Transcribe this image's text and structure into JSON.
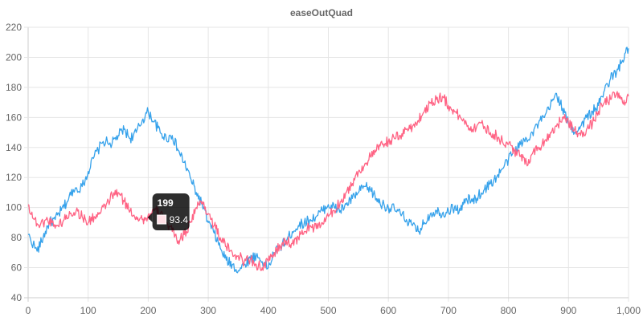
{
  "chart_data": {
    "type": "line",
    "title": "easeOutQuad",
    "xlim": [
      0,
      1000
    ],
    "ylim": [
      40,
      220
    ],
    "x_ticks": [
      "0",
      "100",
      "200",
      "300",
      "400",
      "500",
      "600",
      "700",
      "800",
      "900",
      "1,000"
    ],
    "y_ticks": [
      "40",
      "60",
      "80",
      "100",
      "120",
      "140",
      "160",
      "180",
      "200",
      "220"
    ],
    "grid": true,
    "series": [
      {
        "color": "#36a2eb",
        "points": [
          [
            0,
            82
          ],
          [
            15,
            71
          ],
          [
            25,
            80
          ],
          [
            35,
            90
          ],
          [
            45,
            92
          ],
          [
            55,
            98
          ],
          [
            65,
            104
          ],
          [
            75,
            112
          ],
          [
            90,
            114
          ],
          [
            100,
            124
          ],
          [
            110,
            134
          ],
          [
            125,
            144
          ],
          [
            140,
            143
          ],
          [
            150,
            148
          ],
          [
            160,
            152
          ],
          [
            170,
            146
          ],
          [
            180,
            150
          ],
          [
            190,
            158
          ],
          [
            200,
            164
          ],
          [
            210,
            157
          ],
          [
            220,
            150
          ],
          [
            230,
            146
          ],
          [
            240,
            148
          ],
          [
            250,
            138
          ],
          [
            260,
            130
          ],
          [
            270,
            120
          ],
          [
            280,
            110
          ],
          [
            290,
            102
          ],
          [
            300,
            90
          ],
          [
            310,
            83
          ],
          [
            320,
            73
          ],
          [
            330,
            65
          ],
          [
            340,
            62
          ],
          [
            350,
            58
          ],
          [
            360,
            62
          ],
          [
            370,
            66
          ],
          [
            380,
            68
          ],
          [
            390,
            64
          ],
          [
            400,
            60
          ],
          [
            410,
            70
          ],
          [
            420,
            74
          ],
          [
            430,
            78
          ],
          [
            440,
            84
          ],
          [
            450,
            88
          ],
          [
            460,
            90
          ],
          [
            470,
            92
          ],
          [
            480,
            94
          ],
          [
            490,
            98
          ],
          [
            500,
            102
          ],
          [
            510,
            100
          ],
          [
            520,
            98
          ],
          [
            530,
            102
          ],
          [
            540,
            106
          ],
          [
            550,
            110
          ],
          [
            560,
            114
          ],
          [
            570,
            112
          ],
          [
            580,
            106
          ],
          [
            590,
            102
          ],
          [
            600,
            100
          ],
          [
            610,
            99
          ],
          [
            620,
            96
          ],
          [
            630,
            92
          ],
          [
            640,
            88
          ],
          [
            650,
            84
          ],
          [
            660,
            90
          ],
          [
            670,
            96
          ],
          [
            680,
            98
          ],
          [
            690,
            96
          ],
          [
            700,
            98
          ],
          [
            710,
            100
          ],
          [
            720,
            98
          ],
          [
            730,
            106
          ],
          [
            740,
            104
          ],
          [
            750,
            108
          ],
          [
            760,
            112
          ],
          [
            770,
            116
          ],
          [
            780,
            120
          ],
          [
            790,
            126
          ],
          [
            800,
            132
          ],
          [
            810,
            138
          ],
          [
            820,
            142
          ],
          [
            830,
            146
          ],
          [
            840,
            150
          ],
          [
            850,
            156
          ],
          [
            860,
            160
          ],
          [
            870,
            168
          ],
          [
            880,
            176
          ],
          [
            890,
            166
          ],
          [
            900,
            156
          ],
          [
            910,
            150
          ],
          [
            920,
            154
          ],
          [
            930,
            160
          ],
          [
            940,
            164
          ],
          [
            950,
            168
          ],
          [
            960,
            178
          ],
          [
            970,
            186
          ],
          [
            980,
            190
          ],
          [
            990,
            198
          ],
          [
            1000,
            206
          ]
        ]
      },
      {
        "color": "#ff6384",
        "points": [
          [
            0,
            102
          ],
          [
            10,
            92
          ],
          [
            20,
            88
          ],
          [
            30,
            92
          ],
          [
            40,
            90
          ],
          [
            50,
            88
          ],
          [
            60,
            92
          ],
          [
            70,
            96
          ],
          [
            80,
            98
          ],
          [
            90,
            94
          ],
          [
            100,
            90
          ],
          [
            110,
            94
          ],
          [
            120,
            96
          ],
          [
            130,
            102
          ],
          [
            140,
            108
          ],
          [
            150,
            110
          ],
          [
            160,
            104
          ],
          [
            170,
            98
          ],
          [
            180,
            94
          ],
          [
            190,
            92
          ],
          [
            199,
            93.4
          ],
          [
            210,
            98
          ],
          [
            220,
            96
          ],
          [
            230,
            90
          ],
          [
            240,
            84
          ],
          [
            250,
            78
          ],
          [
            260,
            82
          ],
          [
            270,
            90
          ],
          [
            280,
            100
          ],
          [
            290,
            104
          ],
          [
            300,
            96
          ],
          [
            310,
            88
          ],
          [
            320,
            80
          ],
          [
            330,
            74
          ],
          [
            340,
            70
          ],
          [
            350,
            68
          ],
          [
            360,
            64
          ],
          [
            370,
            66
          ],
          [
            380,
            62
          ],
          [
            390,
            60
          ],
          [
            400,
            64
          ],
          [
            410,
            70
          ],
          [
            420,
            74
          ],
          [
            430,
            78
          ],
          [
            440,
            76
          ],
          [
            450,
            80
          ],
          [
            460,
            84
          ],
          [
            470,
            88
          ],
          [
            480,
            86
          ],
          [
            490,
            90
          ],
          [
            500,
            94
          ],
          [
            510,
            98
          ],
          [
            520,
            104
          ],
          [
            530,
            110
          ],
          [
            540,
            116
          ],
          [
            550,
            124
          ],
          [
            560,
            128
          ],
          [
            570,
            134
          ],
          [
            580,
            138
          ],
          [
            590,
            142
          ],
          [
            600,
            144
          ],
          [
            610,
            146
          ],
          [
            620,
            148
          ],
          [
            630,
            152
          ],
          [
            640,
            154
          ],
          [
            650,
            158
          ],
          [
            660,
            164
          ],
          [
            670,
            170
          ],
          [
            680,
            172
          ],
          [
            690,
            174
          ],
          [
            700,
            168
          ],
          [
            710,
            164
          ],
          [
            720,
            160
          ],
          [
            730,
            156
          ],
          [
            740,
            152
          ],
          [
            750,
            156
          ],
          [
            760,
            154
          ],
          [
            770,
            150
          ],
          [
            780,
            148
          ],
          [
            790,
            144
          ],
          [
            800,
            142
          ],
          [
            810,
            138
          ],
          [
            820,
            134
          ],
          [
            830,
            130
          ],
          [
            840,
            136
          ],
          [
            850,
            140
          ],
          [
            860,
            144
          ],
          [
            870,
            150
          ],
          [
            880,
            154
          ],
          [
            890,
            160
          ],
          [
            900,
            156
          ],
          [
            910,
            152
          ],
          [
            920,
            148
          ],
          [
            930,
            152
          ],
          [
            940,
            156
          ],
          [
            950,
            164
          ],
          [
            960,
            170
          ],
          [
            970,
            172
          ],
          [
            980,
            176
          ],
          [
            990,
            170
          ],
          [
            1000,
            174
          ]
        ]
      }
    ],
    "tooltip": {
      "title": "199",
      "value": "93.4",
      "anchor": [
        199,
        93.4
      ],
      "swatch_color": "#ff6384"
    }
  }
}
